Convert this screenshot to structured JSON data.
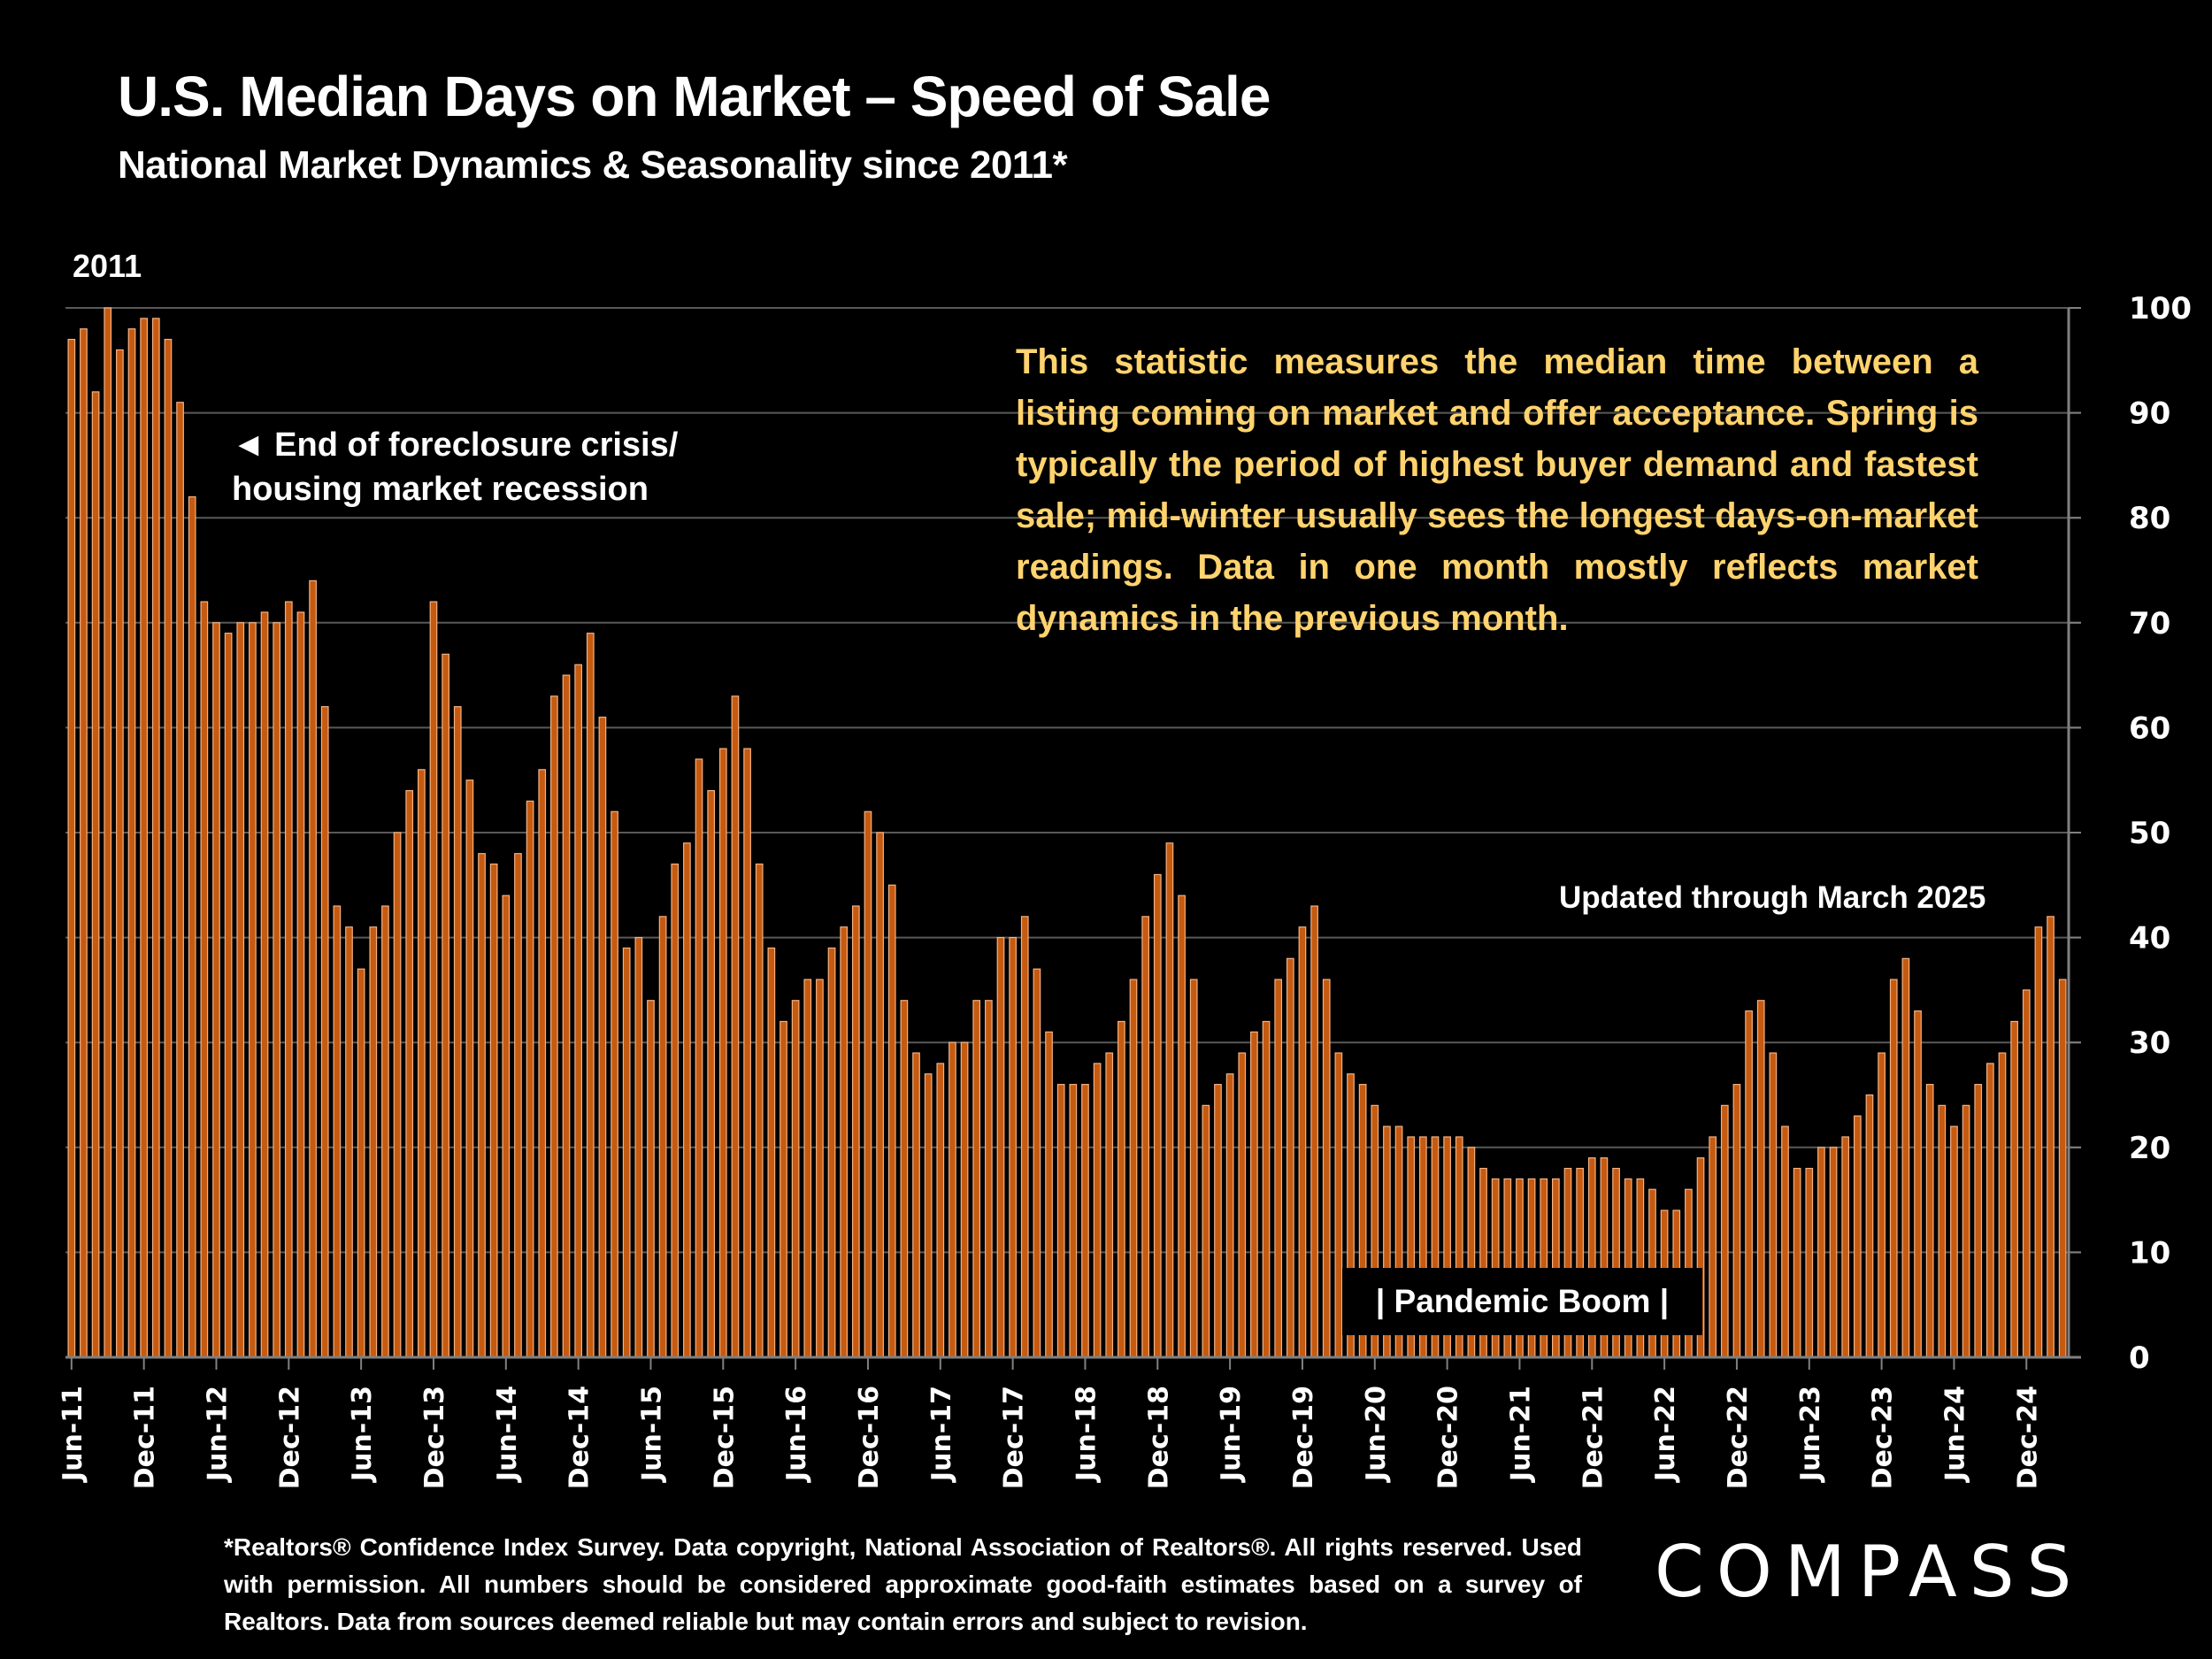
{
  "header": {
    "title": "U.S. Median Days on Market – Speed of Sale",
    "subtitle": "National Market Dynamics & Seasonality since 2011*",
    "year_label": "2011"
  },
  "annotations": {
    "foreclosure_line1": "◄ End of foreclosure crisis/",
    "foreclosure_line2": "housing market recession",
    "description": "This statistic measures the median time between a listing coming on market and offer acceptance. Spring is typically the period of highest buyer demand and fastest sale; mid-winter usually sees the longest days-on-market readings. Data in one month mostly reflects market dynamics in the previous month.",
    "updated": "Updated through March 2025",
    "pandemic": "| Pandemic Boom |"
  },
  "footer": {
    "note": "*Realtors® Confidence Index Survey. Data copyright, National Association of Realtors®. All rights reserved. Used with permission. All numbers should be considered approximate good-faith estimates based on a survey of Realtors. Data from sources deemed reliable but may contain errors and subject to revision.",
    "logo": "COMPASS"
  },
  "colors": {
    "bar": "#c55a11",
    "bar_edge": "#f4b183",
    "description_text": "#ffd36e",
    "gridline": "#595959",
    "background": "#000000"
  },
  "chart_data": {
    "type": "bar",
    "title": "U.S. Median Days on Market – Speed of Sale",
    "xlabel": "",
    "ylabel": "Median Days on Market",
    "ylim": [
      0,
      100
    ],
    "yticks": [
      0,
      10,
      20,
      30,
      40,
      50,
      60,
      70,
      80,
      90,
      100
    ],
    "y_axis_side": "right",
    "grid": true,
    "start_month": "Jun-11",
    "end_month": "Mar-25",
    "xtick_labels": [
      "Jun-11",
      "Dec-11",
      "Jun-12",
      "Dec-12",
      "Jun-13",
      "Dec-13",
      "Jun-14",
      "Dec-14",
      "Jun-15",
      "Dec-15",
      "Jun-16",
      "Dec-16",
      "Jun-17",
      "Dec-17",
      "Jun-18",
      "Dec-18",
      "Jun-19",
      "Dec-19",
      "Jun-20",
      "Dec-20",
      "Jun-21",
      "Dec-21",
      "Jun-22",
      "Dec-22",
      "Jun-23",
      "Dec-23",
      "Jun-24",
      "Dec-24"
    ],
    "values": [
      97,
      98,
      92,
      100,
      96,
      98,
      99,
      99,
      97,
      91,
      82,
      72,
      70,
      69,
      70,
      70,
      71,
      70,
      72,
      71,
      74,
      62,
      43,
      41,
      37,
      41,
      43,
      50,
      54,
      56,
      72,
      67,
      62,
      55,
      48,
      47,
      44,
      48,
      53,
      56,
      63,
      65,
      66,
      69,
      61,
      52,
      39,
      40,
      34,
      42,
      47,
      49,
      57,
      54,
      58,
      63,
      58,
      47,
      39,
      32,
      34,
      36,
      36,
      39,
      41,
      43,
      52,
      50,
      45,
      34,
      29,
      27,
      28,
      30,
      30,
      34,
      34,
      40,
      40,
      42,
      37,
      31,
      26,
      26,
      26,
      28,
      29,
      32,
      36,
      42,
      46,
      49,
      44,
      36,
      24,
      26,
      27,
      29,
      31,
      32,
      36,
      38,
      41,
      43,
      36,
      29,
      27,
      26,
      24,
      22,
      22,
      21,
      21,
      21,
      21,
      21,
      20,
      18,
      17,
      17,
      17,
      17,
      17,
      17,
      18,
      18,
      19,
      19,
      18,
      17,
      17,
      16,
      14,
      14,
      16,
      19,
      21,
      24,
      26,
      33,
      34,
      29,
      22,
      18,
      18,
      20,
      20,
      21,
      23,
      25,
      29,
      36,
      38,
      33,
      26,
      24,
      22,
      24,
      26,
      28,
      29,
      32,
      35,
      41,
      42,
      36
    ]
  }
}
